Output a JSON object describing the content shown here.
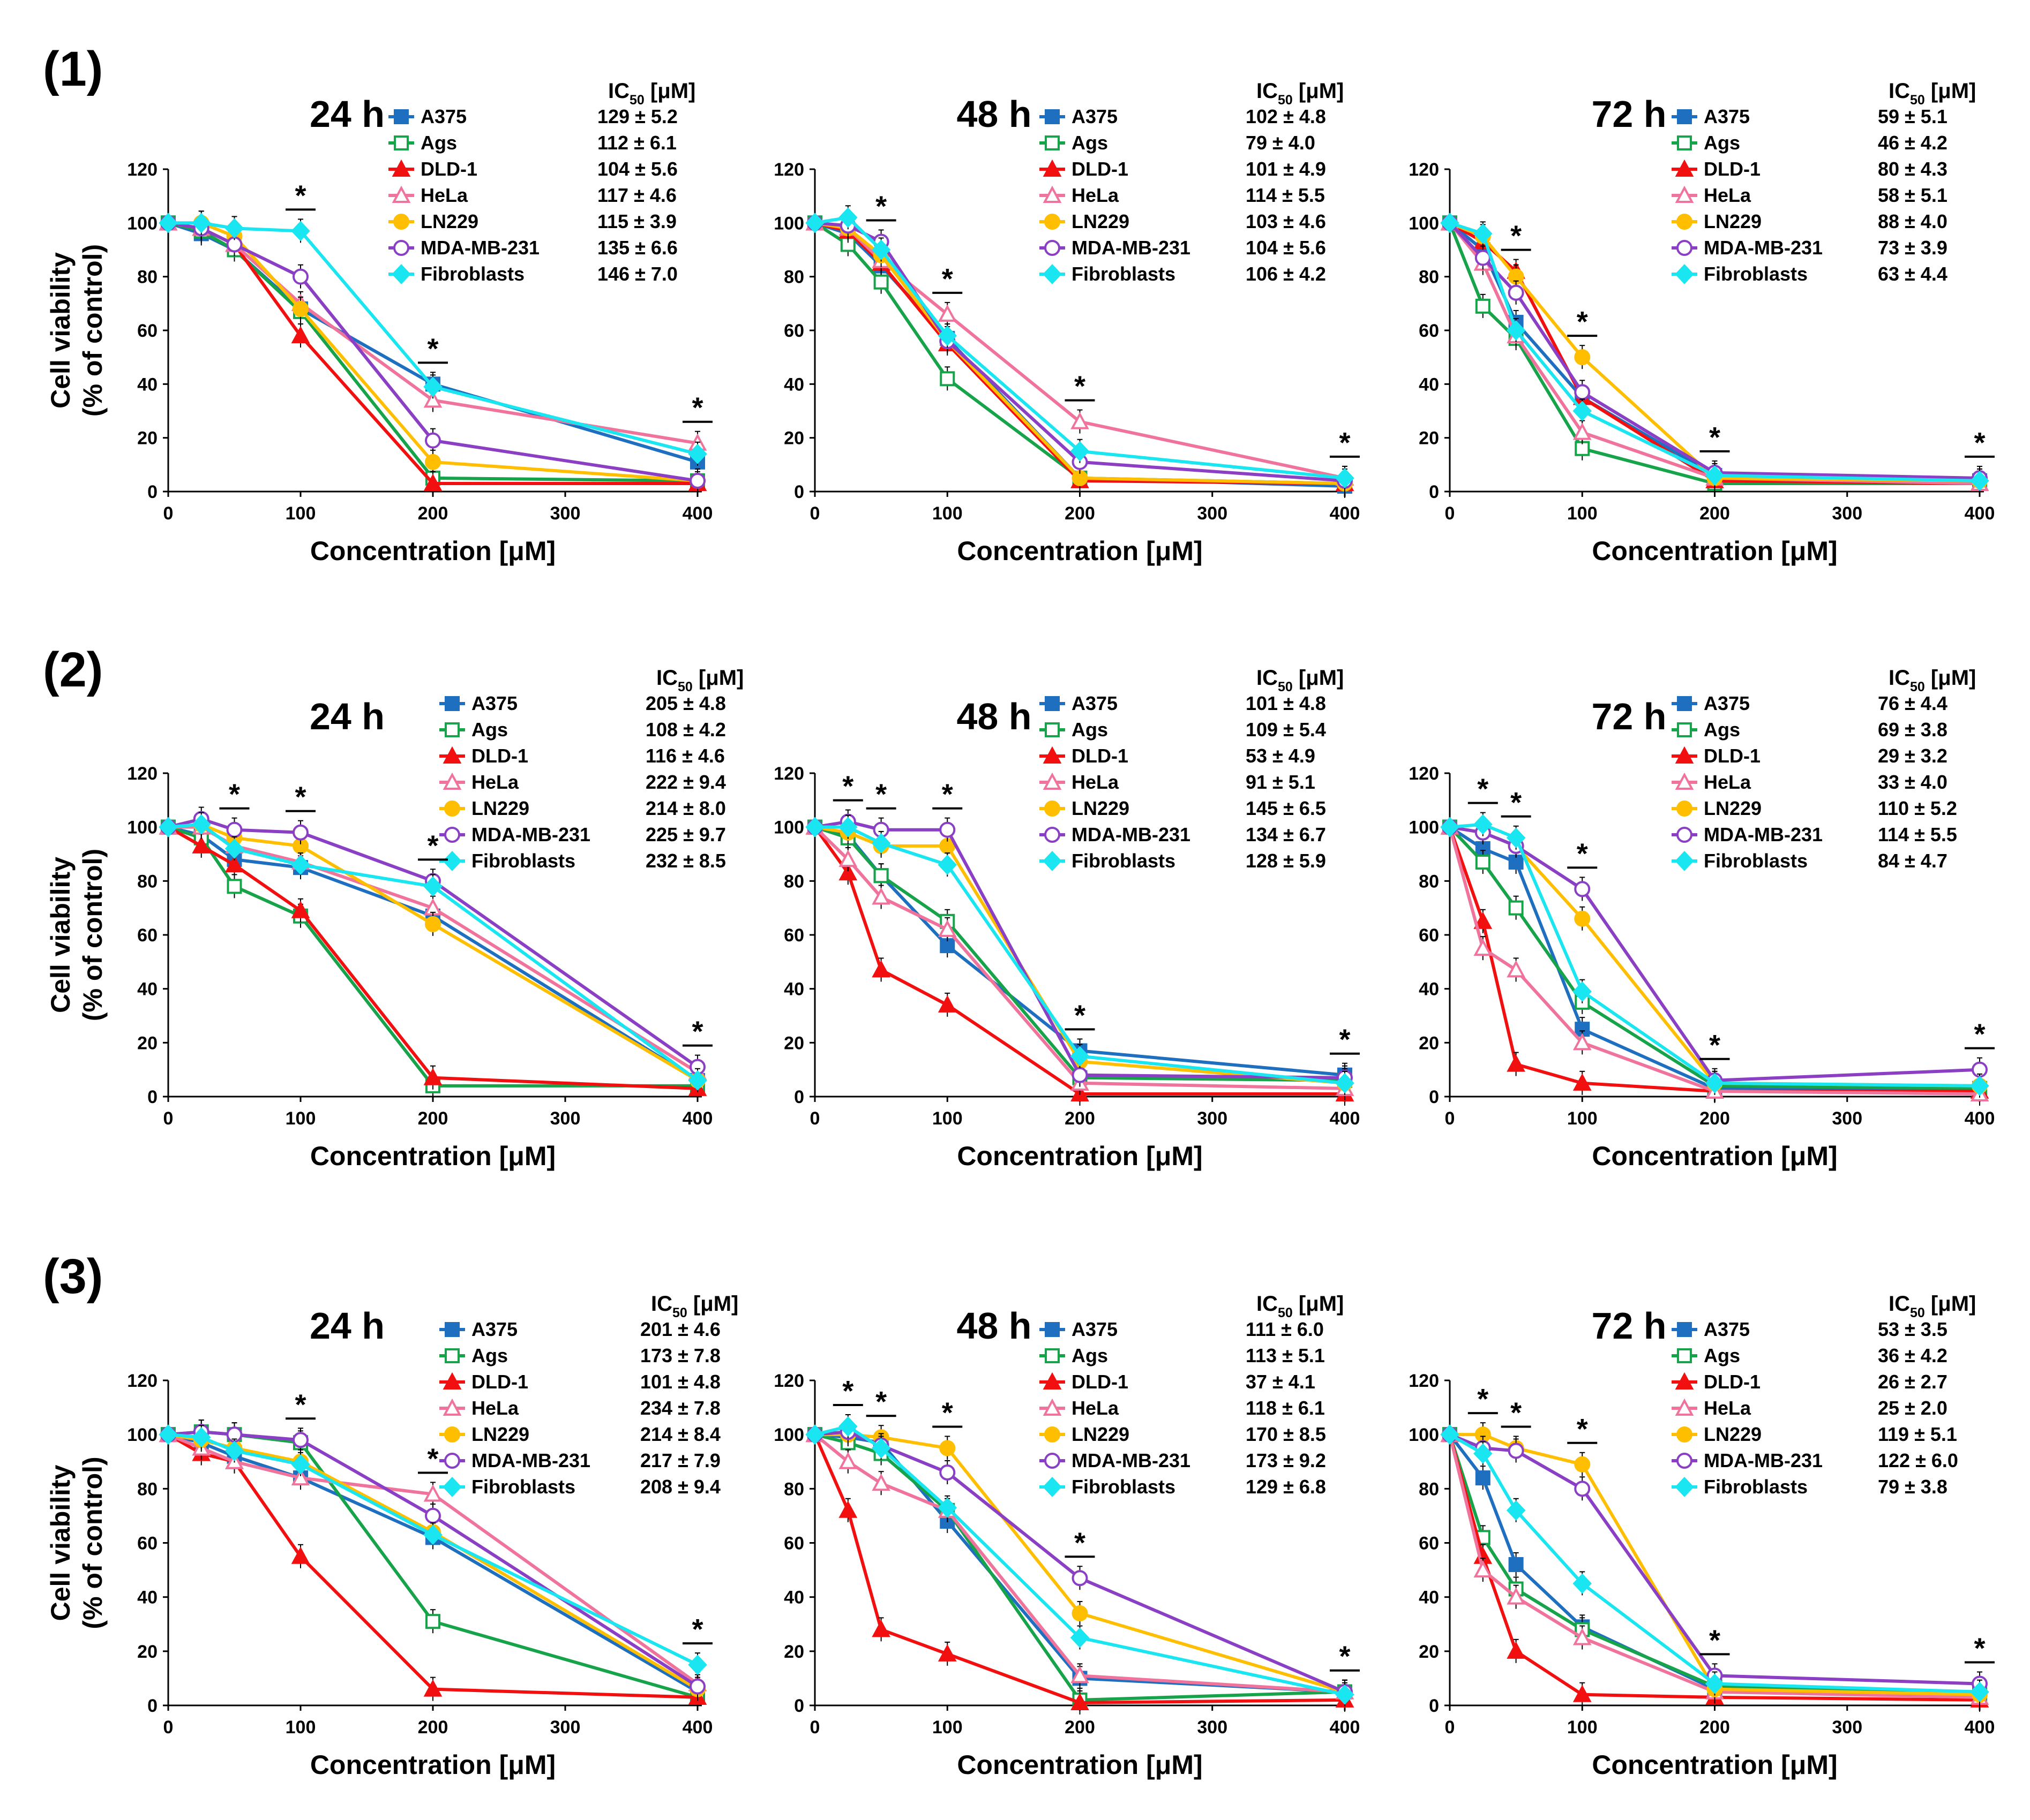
{
  "figure": {
    "row_labels": [
      "(1)",
      "(2)",
      "(3)"
    ],
    "ic50_header": {
      "prefix": "IC",
      "sub": "50",
      "suffix": " [μM]"
    },
    "y_axis_title": [
      "Cell viability",
      "(% of control)"
    ],
    "x_axis_title": "Concentration [μM]",
    "significance_symbol": "*"
  },
  "colors": {
    "A375": "#1f6fc0",
    "Ags": "#17a34a",
    "DLD-1": "#f20f0f",
    "HeLa": "#f0739c",
    "LN229": "#ffbf00",
    "MDA-MB-231": "#8a3fc4",
    "Fibroblasts": "#19e6f0"
  },
  "markers": {
    "A375": "square-filled",
    "Ags": "square-open",
    "DLD-1": "triangle-filled",
    "HeLa": "triangle-open",
    "LN229": "circle-filled",
    "MDA-MB-231": "circle-open",
    "Fibroblasts": "diamond-filled"
  },
  "chart_data": [
    {
      "id": "r1c1",
      "type": "line",
      "title": "24 h",
      "xlabel": "Concentration [μM]",
      "ylabel": "Cell viability (% of control)",
      "xlim": [
        0,
        400
      ],
      "ylim": [
        0,
        120
      ],
      "x_ticks": [
        0,
        100,
        200,
        300,
        400
      ],
      "y_ticks": [
        0,
        20,
        40,
        60,
        80,
        100,
        120
      ],
      "x": [
        0,
        25,
        50,
        100,
        200,
        400
      ],
      "series": [
        {
          "name": "A375",
          "values": [
            100,
            96,
            90,
            68,
            40,
            11
          ],
          "ic50": "129 ± 5.2"
        },
        {
          "name": "Ags",
          "values": [
            100,
            97,
            90,
            67,
            5,
            4
          ],
          "ic50": "112 ± 6.1"
        },
        {
          "name": "DLD-1",
          "values": [
            100,
            98,
            92,
            58,
            3,
            3
          ],
          "ic50": "104 ± 5.6"
        },
        {
          "name": "HeLa",
          "values": [
            100,
            98,
            92,
            70,
            34,
            18
          ],
          "ic50": "117 ± 4.6"
        },
        {
          "name": "LN229",
          "values": [
            100,
            100,
            95,
            68,
            11,
            4
          ],
          "ic50": "115 ± 3.9"
        },
        {
          "name": "MDA-MB-231",
          "values": [
            100,
            98,
            92,
            80,
            19,
            4
          ],
          "ic50": "135 ± 6.6"
        },
        {
          "name": "Fibroblasts",
          "values": [
            100,
            100,
            98,
            97,
            39,
            14
          ],
          "ic50": "146 ± 7.0"
        }
      ],
      "significance_x": [
        100,
        200,
        400
      ]
    },
    {
      "id": "r1c2",
      "type": "line",
      "title": "48 h",
      "xlabel": "Concentration [μM]",
      "ylabel": "Cell viability (% of control)",
      "xlim": [
        0,
        400
      ],
      "ylim": [
        0,
        120
      ],
      "x_ticks": [
        0,
        100,
        200,
        300,
        400
      ],
      "y_ticks": [
        0,
        20,
        40,
        60,
        80,
        100,
        120
      ],
      "x": [
        0,
        25,
        50,
        100,
        200,
        400
      ],
      "series": [
        {
          "name": "A375",
          "values": [
            100,
            96,
            84,
            57,
            5,
            2
          ],
          "ic50": "102 ± 4.8"
        },
        {
          "name": "Ags",
          "values": [
            100,
            92,
            78,
            42,
            5,
            3
          ],
          "ic50": "79 ± 4.0"
        },
        {
          "name": "DLD-1",
          "values": [
            100,
            97,
            85,
            55,
            4,
            3
          ],
          "ic50": "101 ± 4.9"
        },
        {
          "name": "HeLa",
          "values": [
            100,
            98,
            86,
            66,
            26,
            5
          ],
          "ic50": "114 ± 5.5"
        },
        {
          "name": "LN229",
          "values": [
            100,
            98,
            88,
            56,
            5,
            3
          ],
          "ic50": "103 ± 4.6"
        },
        {
          "name": "MDA-MB-231",
          "values": [
            100,
            99,
            93,
            56,
            11,
            4
          ],
          "ic50": "104 ± 5.6"
        },
        {
          "name": "Fibroblasts",
          "values": [
            100,
            102,
            90,
            58,
            15,
            5
          ],
          "ic50": "106 ± 4.2"
        }
      ],
      "significance_x": [
        50,
        100,
        200,
        400
      ]
    },
    {
      "id": "r1c3",
      "type": "line",
      "title": "72 h",
      "xlabel": "Concentration [μM]",
      "ylabel": "Cell viability (% of control)",
      "xlim": [
        0,
        400
      ],
      "ylim": [
        0,
        120
      ],
      "x_ticks": [
        0,
        100,
        200,
        300,
        400
      ],
      "y_ticks": [
        0,
        20,
        40,
        60,
        80,
        100,
        120
      ],
      "x": [
        0,
        25,
        50,
        100,
        200,
        400
      ],
      "series": [
        {
          "name": "A375",
          "values": [
            100,
            90,
            63,
            35,
            6,
            4
          ],
          "ic50": "59 ± 5.1"
        },
        {
          "name": "Ags",
          "values": [
            100,
            69,
            57,
            16,
            3,
            3
          ],
          "ic50": "46 ± 4.2"
        },
        {
          "name": "DLD-1",
          "values": [
            100,
            93,
            82,
            35,
            4,
            3
          ],
          "ic50": "80 ± 4.3"
        },
        {
          "name": "HeLa",
          "values": [
            100,
            85,
            58,
            22,
            5,
            3
          ],
          "ic50": "58 ± 5.1"
        },
        {
          "name": "LN229",
          "values": [
            100,
            95,
            80,
            50,
            5,
            4
          ],
          "ic50": "88 ± 4.0"
        },
        {
          "name": "MDA-MB-231",
          "values": [
            100,
            87,
            74,
            37,
            7,
            5
          ],
          "ic50": "73 ± 3.9"
        },
        {
          "name": "Fibroblasts",
          "values": [
            100,
            96,
            60,
            30,
            6,
            4
          ],
          "ic50": "63 ± 4.4"
        }
      ],
      "significance_x": [
        50,
        100,
        200,
        400
      ]
    },
    {
      "id": "r2c1",
      "type": "line",
      "title": "24 h",
      "xlabel": "Concentration [μM]",
      "ylabel": "Cell viability (% of control)",
      "xlim": [
        0,
        400
      ],
      "ylim": [
        0,
        120
      ],
      "x_ticks": [
        0,
        100,
        200,
        300,
        400
      ],
      "y_ticks": [
        0,
        20,
        40,
        60,
        80,
        100,
        120
      ],
      "x": [
        0,
        25,
        50,
        100,
        200,
        400
      ],
      "series": [
        {
          "name": "A375",
          "values": [
            100,
            97,
            88,
            85,
            67,
            6
          ],
          "ic50": "205 ± 4.8"
        },
        {
          "name": "Ags",
          "values": [
            100,
            96,
            78,
            67,
            4,
            4
          ],
          "ic50": "108 ± 4.2"
        },
        {
          "name": "DLD-1",
          "values": [
            100,
            93,
            86,
            69,
            7,
            3
          ],
          "ic50": "116 ± 4.6"
        },
        {
          "name": "HeLa",
          "values": [
            100,
            100,
            93,
            87,
            70,
            9
          ],
          "ic50": "222 ± 9.4"
        },
        {
          "name": "LN229",
          "values": [
            100,
            101,
            96,
            93,
            64,
            6
          ],
          "ic50": "214 ± 8.0"
        },
        {
          "name": "MDA-MB-231",
          "values": [
            100,
            103,
            99,
            98,
            80,
            11
          ],
          "ic50": "225 ± 9.7"
        },
        {
          "name": "Fibroblasts",
          "values": [
            100,
            101,
            92,
            86,
            78,
            6
          ],
          "ic50": "232 ± 8.5"
        }
      ],
      "significance_x": [
        50,
        100,
        200,
        400
      ]
    },
    {
      "id": "r2c2",
      "type": "line",
      "title": "48 h",
      "xlabel": "Concentration [μM]",
      "ylabel": "Cell viability (% of control)",
      "xlim": [
        0,
        400
      ],
      "ylim": [
        0,
        120
      ],
      "x_ticks": [
        0,
        100,
        200,
        300,
        400
      ],
      "y_ticks": [
        0,
        20,
        40,
        60,
        80,
        100,
        120
      ],
      "x": [
        0,
        25,
        50,
        100,
        200,
        400
      ],
      "series": [
        {
          "name": "A375",
          "values": [
            100,
            97,
            82,
            56,
            17,
            8
          ],
          "ic50": "101 ± 4.8"
        },
        {
          "name": "Ags",
          "values": [
            100,
            96,
            82,
            65,
            7,
            6
          ],
          "ic50": "109 ± 5.4"
        },
        {
          "name": "DLD-1",
          "values": [
            100,
            83,
            47,
            34,
            1,
            1
          ],
          "ic50": "53 ± 4.9"
        },
        {
          "name": "HeLa",
          "values": [
            100,
            88,
            74,
            62,
            5,
            3
          ],
          "ic50": "91 ± 5.1"
        },
        {
          "name": "LN229",
          "values": [
            100,
            98,
            93,
            93,
            13,
            5
          ],
          "ic50": "145 ± 6.5"
        },
        {
          "name": "MDA-MB-231",
          "values": [
            100,
            102,
            99,
            99,
            8,
            7
          ],
          "ic50": "134 ± 6.7"
        },
        {
          "name": "Fibroblasts",
          "values": [
            100,
            100,
            94,
            86,
            15,
            5
          ],
          "ic50": "128 ± 5.9"
        }
      ],
      "significance_x": [
        25,
        50,
        100,
        200,
        400
      ]
    },
    {
      "id": "r2c3",
      "type": "line",
      "title": "72 h",
      "xlabel": "Concentration [μM]",
      "ylabel": "Cell viability (% of control)",
      "xlim": [
        0,
        400
      ],
      "ylim": [
        0,
        120
      ],
      "x_ticks": [
        0,
        100,
        200,
        300,
        400
      ],
      "y_ticks": [
        0,
        20,
        40,
        60,
        80,
        100,
        120
      ],
      "x": [
        0,
        25,
        50,
        100,
        200,
        400
      ],
      "series": [
        {
          "name": "A375",
          "values": [
            100,
            92,
            87,
            25,
            3,
            3
          ],
          "ic50": "76 ± 4.4"
        },
        {
          "name": "Ags",
          "values": [
            100,
            87,
            70,
            35,
            4,
            3
          ],
          "ic50": "69 ± 3.8"
        },
        {
          "name": "DLD-1",
          "values": [
            100,
            65,
            12,
            5,
            2,
            2
          ],
          "ic50": "29 ± 3.2"
        },
        {
          "name": "HeLa",
          "values": [
            100,
            55,
            47,
            20,
            2,
            1
          ],
          "ic50": "33 ± 4.0"
        },
        {
          "name": "LN229",
          "values": [
            100,
            98,
            93,
            66,
            5,
            4
          ],
          "ic50": "110 ± 5.2"
        },
        {
          "name": "MDA-MB-231",
          "values": [
            100,
            98,
            93,
            77,
            6,
            10
          ],
          "ic50": "114 ± 5.5"
        },
        {
          "name": "Fibroblasts",
          "values": [
            100,
            101,
            96,
            39,
            5,
            4
          ],
          "ic50": "84 ± 4.7"
        }
      ],
      "significance_x": [
        25,
        50,
        100,
        200,
        400
      ]
    },
    {
      "id": "r3c1",
      "type": "line",
      "title": "24 h",
      "xlabel": "Concentration [μM]",
      "ylabel": "Cell viability (% of control)",
      "xlim": [
        0,
        400
      ],
      "ylim": [
        0,
        120
      ],
      "x_ticks": [
        0,
        100,
        200,
        300,
        400
      ],
      "y_ticks": [
        0,
        20,
        40,
        60,
        80,
        100,
        120
      ],
      "x": [
        0,
        25,
        50,
        100,
        200,
        400
      ],
      "series": [
        {
          "name": "A375",
          "values": [
            100,
            97,
            92,
            84,
            62,
            5
          ],
          "ic50": "201 ± 4.6"
        },
        {
          "name": "Ags",
          "values": [
            100,
            101,
            100,
            97,
            31,
            3
          ],
          "ic50": "173 ± 7.8"
        },
        {
          "name": "DLD-1",
          "values": [
            100,
            93,
            90,
            55,
            6,
            3
          ],
          "ic50": "101 ± 4.8"
        },
        {
          "name": "HeLa",
          "values": [
            100,
            95,
            90,
            84,
            78,
            8
          ],
          "ic50": "234 ± 7.8"
        },
        {
          "name": "LN229",
          "values": [
            100,
            98,
            95,
            90,
            64,
            6
          ],
          "ic50": "214 ± 8.4"
        },
        {
          "name": "MDA-MB-231",
          "values": [
            100,
            101,
            100,
            98,
            70,
            7
          ],
          "ic50": "217 ± 7.9"
        },
        {
          "name": "Fibroblasts",
          "values": [
            100,
            99,
            94,
            89,
            63,
            15
          ],
          "ic50": "208 ± 9.4"
        }
      ],
      "significance_x": [
        100,
        200,
        400
      ]
    },
    {
      "id": "r3c2",
      "type": "line",
      "title": "48 h",
      "xlabel": "Concentration [μM]",
      "ylabel": "Cell viability (% of control)",
      "xlim": [
        0,
        400
      ],
      "ylim": [
        0,
        120
      ],
      "x_ticks": [
        0,
        100,
        200,
        300,
        400
      ],
      "y_ticks": [
        0,
        20,
        40,
        60,
        80,
        100,
        120
      ],
      "x": [
        0,
        25,
        50,
        100,
        200,
        400
      ],
      "series": [
        {
          "name": "A375",
          "values": [
            100,
            99,
            97,
            68,
            10,
            5
          ],
          "ic50": "111 ± 6.0"
        },
        {
          "name": "Ags",
          "values": [
            100,
            97,
            93,
            72,
            2,
            5
          ],
          "ic50": "113 ± 5.1"
        },
        {
          "name": "DLD-1",
          "values": [
            100,
            72,
            28,
            19,
            1,
            2
          ],
          "ic50": "37 ± 4.1"
        },
        {
          "name": "HeLa",
          "values": [
            100,
            90,
            82,
            72,
            11,
            5
          ],
          "ic50": "118 ± 6.1"
        },
        {
          "name": "LN229",
          "values": [
            100,
            100,
            99,
            95,
            34,
            5
          ],
          "ic50": "170 ± 8.5"
        },
        {
          "name": "MDA-MB-231",
          "values": [
            100,
            101,
            96,
            86,
            47,
            5
          ],
          "ic50": "173 ± 9.2"
        },
        {
          "name": "Fibroblasts",
          "values": [
            100,
            103,
            95,
            73,
            25,
            4
          ],
          "ic50": "129 ± 6.8"
        }
      ],
      "significance_x": [
        25,
        50,
        100,
        200,
        400
      ]
    },
    {
      "id": "r3c3",
      "type": "line",
      "title": "72 h",
      "xlabel": "Concentration [μM]",
      "ylabel": "Cell viability (% of control)",
      "xlim": [
        0,
        400
      ],
      "ylim": [
        0,
        120
      ],
      "x_ticks": [
        0,
        100,
        200,
        300,
        400
      ],
      "y_ticks": [
        0,
        20,
        40,
        60,
        80,
        100,
        120
      ],
      "x": [
        0,
        25,
        50,
        100,
        200,
        400
      ],
      "series": [
        {
          "name": "A375",
          "values": [
            100,
            84,
            52,
            29,
            6,
            4
          ],
          "ic50": "53 ± 3.5"
        },
        {
          "name": "Ags",
          "values": [
            100,
            62,
            43,
            28,
            7,
            5
          ],
          "ic50": "36 ± 4.2"
        },
        {
          "name": "DLD-1",
          "values": [
            100,
            55,
            20,
            4,
            3,
            2
          ],
          "ic50": "26 ± 2.7"
        },
        {
          "name": "HeLa",
          "values": [
            100,
            50,
            40,
            25,
            5,
            3
          ],
          "ic50": "25 ± 2.0"
        },
        {
          "name": "LN229",
          "values": [
            100,
            100,
            95,
            89,
            6,
            4
          ],
          "ic50": "119 ± 5.1"
        },
        {
          "name": "MDA-MB-231",
          "values": [
            100,
            95,
            94,
            80,
            11,
            8
          ],
          "ic50": "122 ± 6.0"
        },
        {
          "name": "Fibroblasts",
          "values": [
            100,
            93,
            72,
            45,
            8,
            5
          ],
          "ic50": "79 ± 3.8"
        }
      ],
      "significance_x": [
        25,
        50,
        100,
        200,
        400
      ]
    }
  ]
}
